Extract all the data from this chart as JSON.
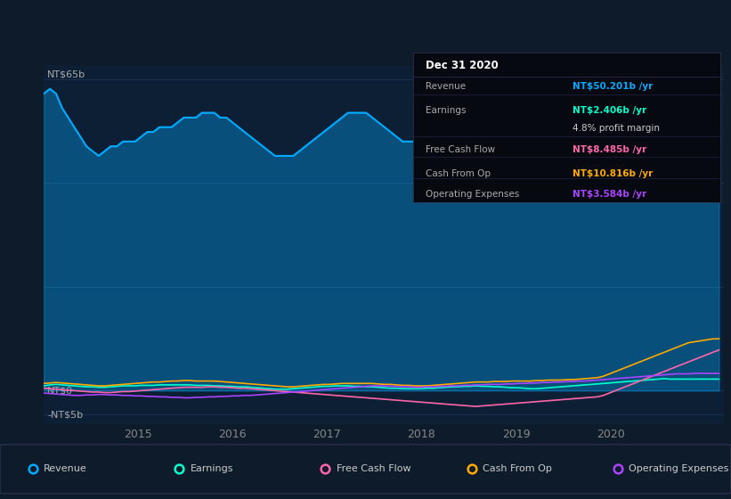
{
  "background_color": "#0d1b2a",
  "plot_bg_color": "#0d1f35",
  "ylabel_top": "NT$65b",
  "ylabel_zero": "NT$0",
  "ylabel_neg": "-NT$5b",
  "ylim": [
    -7,
    68
  ],
  "xlim_start": 2014.0,
  "xlim_end": 2021.2,
  "xtick_labels": [
    "2015",
    "2016",
    "2017",
    "2018",
    "2019",
    "2020"
  ],
  "xtick_positions": [
    2015,
    2016,
    2017,
    2018,
    2019,
    2020
  ],
  "legend_labels": [
    "Revenue",
    "Earnings",
    "Free Cash Flow",
    "Cash From Op",
    "Operating Expenses"
  ],
  "legend_colors": [
    "#00aaff",
    "#00ffcc",
    "#ff66aa",
    "#ffaa00",
    "#aa44ff"
  ],
  "info_box_title": "Dec 31 2020",
  "info_box_rows": [
    {
      "label": "Revenue",
      "value": "NT$50.201b /yr",
      "color": "#00aaff"
    },
    {
      "label": "Earnings",
      "value": "NT$2.406b /yr",
      "color": "#00ffcc"
    },
    {
      "label": "",
      "value": "4.8% profit margin",
      "color": "#cccccc"
    },
    {
      "label": "Free Cash Flow",
      "value": "NT$8.485b /yr",
      "color": "#ff66aa"
    },
    {
      "label": "Cash From Op",
      "value": "NT$10.816b /yr",
      "color": "#ffaa00"
    },
    {
      "label": "Operating Expenses",
      "value": "NT$3.584b /yr",
      "color": "#aa44ff"
    }
  ],
  "revenue": [
    62,
    63,
    62,
    59,
    57,
    55,
    53,
    51,
    50,
    49,
    50,
    51,
    51,
    52,
    52,
    52,
    53,
    54,
    54,
    55,
    55,
    55,
    56,
    57,
    57,
    57,
    58,
    58,
    58,
    57,
    57,
    56,
    55,
    54,
    53,
    52,
    51,
    50,
    49,
    49,
    49,
    49,
    50,
    51,
    52,
    53,
    54,
    55,
    56,
    57,
    58,
    58,
    58,
    58,
    57,
    56,
    55,
    54,
    53,
    52,
    52,
    52,
    52,
    52,
    52,
    52,
    52,
    52,
    52,
    51,
    51,
    50,
    49,
    48,
    47,
    46,
    45,
    44,
    43,
    42,
    41,
    42,
    43,
    44,
    45,
    46,
    47,
    48,
    49,
    50,
    51,
    52,
    53,
    54,
    55,
    56,
    57,
    58,
    59,
    60,
    61,
    62,
    63,
    62,
    61,
    60,
    59,
    57,
    55,
    53,
    51,
    50
  ],
  "earnings": [
    1,
    1.2,
    1.3,
    1.2,
    1.1,
    1.0,
    0.9,
    0.8,
    0.8,
    0.7,
    0.7,
    0.8,
    0.9,
    1.0,
    1.0,
    1.0,
    1.1,
    1.1,
    1.1,
    1.2,
    1.2,
    1.2,
    1.2,
    1.2,
    1.2,
    1.1,
    1.1,
    1.1,
    1.0,
    1.0,
    0.9,
    0.9,
    0.8,
    0.8,
    0.7,
    0.6,
    0.5,
    0.4,
    0.3,
    0.3,
    0.3,
    0.4,
    0.5,
    0.6,
    0.7,
    0.8,
    0.9,
    0.9,
    1.0,
    1.0,
    1.0,
    0.9,
    0.9,
    0.8,
    0.8,
    0.7,
    0.6,
    0.5,
    0.5,
    0.4,
    0.4,
    0.4,
    0.4,
    0.5,
    0.5,
    0.6,
    0.7,
    0.8,
    0.8,
    0.9,
    0.9,
    1.0,
    0.9,
    0.9,
    0.8,
    0.8,
    0.7,
    0.6,
    0.6,
    0.5,
    0.4,
    0.4,
    0.5,
    0.6,
    0.7,
    0.8,
    0.9,
    1.0,
    1.1,
    1.2,
    1.3,
    1.4,
    1.5,
    1.6,
    1.7,
    1.8,
    1.9,
    2.0,
    2.1,
    2.2,
    2.3,
    2.4,
    2.5,
    2.4,
    2.4,
    2.4,
    2.4,
    2.4,
    2.4,
    2.4,
    2.4,
    2.4
  ],
  "free_cash_flow": [
    0.5,
    0.4,
    0.3,
    0.2,
    0.1,
    0.0,
    -0.1,
    -0.2,
    -0.3,
    -0.3,
    -0.4,
    -0.4,
    -0.3,
    -0.2,
    -0.2,
    -0.1,
    0.0,
    0.1,
    0.2,
    0.3,
    0.4,
    0.5,
    0.6,
    0.7,
    0.7,
    0.7,
    0.7,
    0.8,
    0.8,
    0.7,
    0.7,
    0.6,
    0.5,
    0.5,
    0.4,
    0.3,
    0.2,
    0.1,
    0.0,
    -0.1,
    -0.2,
    -0.3,
    -0.4,
    -0.5,
    -0.6,
    -0.7,
    -0.8,
    -0.9,
    -1.0,
    -1.1,
    -1.2,
    -1.3,
    -1.4,
    -1.5,
    -1.6,
    -1.7,
    -1.8,
    -1.9,
    -2.0,
    -2.1,
    -2.2,
    -2.3,
    -2.4,
    -2.5,
    -2.6,
    -2.7,
    -2.8,
    -2.9,
    -3.0,
    -3.1,
    -3.2,
    -3.3,
    -3.2,
    -3.1,
    -3.0,
    -2.9,
    -2.8,
    -2.7,
    -2.6,
    -2.5,
    -2.4,
    -2.3,
    -2.2,
    -2.1,
    -2.0,
    -1.9,
    -1.8,
    -1.7,
    -1.6,
    -1.5,
    -1.4,
    -1.3,
    -1.0,
    -0.5,
    0.0,
    0.5,
    1.0,
    1.5,
    2.0,
    2.5,
    3.0,
    3.5,
    4.0,
    4.5,
    5.0,
    5.5,
    6.0,
    6.5,
    7.0,
    7.5,
    8.0,
    8.5
  ],
  "cash_from_op": [
    1.5,
    1.6,
    1.7,
    1.6,
    1.5,
    1.4,
    1.3,
    1.2,
    1.1,
    1.0,
    1.0,
    1.1,
    1.2,
    1.3,
    1.4,
    1.5,
    1.6,
    1.7,
    1.8,
    1.8,
    1.9,
    2.0,
    2.0,
    2.1,
    2.1,
    2.0,
    2.0,
    2.0,
    2.0,
    1.9,
    1.8,
    1.7,
    1.6,
    1.5,
    1.4,
    1.3,
    1.2,
    1.1,
    1.0,
    0.9,
    0.8,
    0.8,
    0.9,
    1.0,
    1.1,
    1.2,
    1.3,
    1.3,
    1.4,
    1.5,
    1.5,
    1.5,
    1.5,
    1.5,
    1.5,
    1.4,
    1.3,
    1.3,
    1.2,
    1.1,
    1.1,
    1.0,
    1.0,
    1.0,
    1.1,
    1.2,
    1.3,
    1.4,
    1.5,
    1.6,
    1.7,
    1.8,
    1.8,
    1.8,
    1.9,
    1.9,
    1.9,
    2.0,
    2.0,
    2.0,
    2.0,
    2.1,
    2.1,
    2.2,
    2.2,
    2.2,
    2.3,
    2.3,
    2.4,
    2.5,
    2.6,
    2.7,
    3.0,
    3.5,
    4.0,
    4.5,
    5.0,
    5.5,
    6.0,
    6.5,
    7.0,
    7.5,
    8.0,
    8.5,
    9.0,
    9.5,
    10.0,
    10.2,
    10.4,
    10.6,
    10.8,
    10.816
  ],
  "op_expenses": [
    -0.5,
    -0.6,
    -0.7,
    -0.8,
    -0.9,
    -1.0,
    -1.0,
    -0.9,
    -0.9,
    -0.8,
    -0.8,
    -0.9,
    -0.9,
    -1.0,
    -1.0,
    -1.1,
    -1.1,
    -1.2,
    -1.2,
    -1.3,
    -1.3,
    -1.4,
    -1.4,
    -1.5,
    -1.5,
    -1.4,
    -1.4,
    -1.3,
    -1.3,
    -1.2,
    -1.2,
    -1.1,
    -1.1,
    -1.0,
    -1.0,
    -0.9,
    -0.8,
    -0.7,
    -0.6,
    -0.5,
    -0.4,
    -0.3,
    -0.2,
    -0.1,
    0.0,
    0.1,
    0.2,
    0.3,
    0.4,
    0.5,
    0.6,
    0.7,
    0.8,
    0.9,
    1.0,
    1.0,
    1.0,
    0.9,
    0.9,
    0.8,
    0.8,
    0.7,
    0.7,
    0.8,
    0.8,
    0.9,
    0.9,
    1.0,
    1.0,
    1.1,
    1.1,
    1.2,
    1.2,
    1.3,
    1.3,
    1.3,
    1.4,
    1.4,
    1.5,
    1.5,
    1.6,
    1.6,
    1.7,
    1.7,
    1.8,
    1.8,
    1.9,
    1.9,
    2.0,
    2.0,
    2.1,
    2.2,
    2.3,
    2.4,
    2.5,
    2.6,
    2.7,
    2.8,
    2.9,
    3.0,
    3.1,
    3.2,
    3.3,
    3.4,
    3.5,
    3.5,
    3.5,
    3.6,
    3.6,
    3.6,
    3.584,
    3.584
  ]
}
